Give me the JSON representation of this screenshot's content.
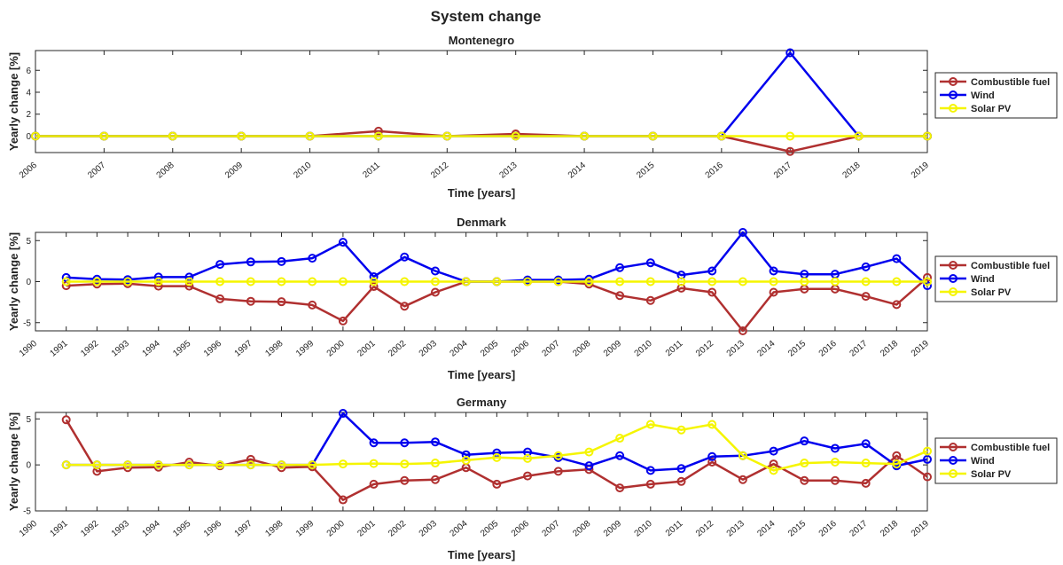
{
  "figure_title": "System change",
  "legend_labels": [
    "Combustible fuel",
    "Wind",
    "Solar PV"
  ],
  "colors": {
    "combustible": "#b03030",
    "wind": "#0000ee",
    "solar": "#f5f500"
  },
  "chart_data": [
    {
      "type": "line",
      "title": "Montenegro",
      "xlabel": "Time [years]",
      "ylabel": "Yearly change [%]",
      "xlim": [
        2006,
        2019
      ],
      "ylim": [
        -1.5,
        7.8
      ],
      "yticks": [
        0,
        2,
        4,
        6
      ],
      "xticks": [
        2006,
        2007,
        2008,
        2009,
        2010,
        2011,
        2012,
        2013,
        2014,
        2015,
        2016,
        2017,
        2018,
        2019
      ],
      "legend_position": "right",
      "x": [
        2006,
        2007,
        2008,
        2009,
        2010,
        2011,
        2012,
        2013,
        2014,
        2015,
        2016,
        2017,
        2018,
        2019
      ],
      "series": [
        {
          "name": "Combustible fuel",
          "color": "#b03030",
          "values": [
            0,
            0,
            0,
            0,
            0,
            0.45,
            0,
            0.2,
            0,
            0,
            0,
            -1.4,
            0,
            0
          ]
        },
        {
          "name": "Wind",
          "color": "#0000ee",
          "values": [
            0,
            0,
            0,
            0,
            0,
            0,
            0,
            0,
            0,
            0,
            0,
            7.6,
            0,
            0
          ]
        },
        {
          "name": "Solar PV",
          "color": "#f5f500",
          "values": [
            0,
            0,
            0,
            0,
            0,
            0,
            0,
            0,
            0,
            0,
            0,
            0,
            0,
            0
          ]
        }
      ]
    },
    {
      "type": "line",
      "title": "Denmark",
      "xlabel": "Time [years]",
      "ylabel": "Yearly change [%]",
      "xlim": [
        1990,
        2019
      ],
      "ylim": [
        -6,
        6
      ],
      "yticks": [
        -5,
        0,
        5
      ],
      "xticks": [
        1990,
        1991,
        1992,
        1993,
        1994,
        1995,
        1996,
        1997,
        1998,
        1999,
        2000,
        2001,
        2002,
        2003,
        2004,
        2005,
        2006,
        2007,
        2008,
        2009,
        2010,
        2011,
        2012,
        2013,
        2014,
        2015,
        2016,
        2017,
        2018,
        2019
      ],
      "legend_position": "right",
      "x": [
        1991,
        1992,
        1993,
        1994,
        1995,
        1996,
        1997,
        1998,
        1999,
        2000,
        2001,
        2002,
        2003,
        2004,
        2005,
        2006,
        2007,
        2008,
        2009,
        2010,
        2011,
        2012,
        2013,
        2014,
        2015,
        2016,
        2017,
        2018,
        2019
      ],
      "series": [
        {
          "name": "Combustible fuel",
          "color": "#b03030",
          "values": [
            -0.5,
            -0.3,
            -0.25,
            -0.55,
            -0.55,
            -2.1,
            -2.4,
            -2.45,
            -2.85,
            -4.8,
            -0.6,
            -3.0,
            -1.3,
            0,
            0,
            0,
            0,
            -0.3,
            -1.7,
            -2.3,
            -0.8,
            -1.3,
            -6.0,
            -1.3,
            -0.9,
            -0.9,
            -1.8,
            -2.8,
            0.5
          ]
        },
        {
          "name": "Wind",
          "color": "#0000ee",
          "values": [
            0.5,
            0.3,
            0.25,
            0.55,
            0.55,
            2.1,
            2.4,
            2.45,
            2.85,
            4.8,
            0.6,
            3.0,
            1.3,
            0,
            0,
            0.2,
            0.2,
            0.3,
            1.7,
            2.3,
            0.8,
            1.3,
            6.0,
            1.3,
            0.9,
            0.9,
            1.8,
            2.8,
            -0.5
          ]
        },
        {
          "name": "Solar PV",
          "color": "#f5f500",
          "values": [
            0,
            0,
            0,
            0,
            0,
            0,
            0,
            0,
            0,
            0,
            0,
            0,
            0,
            0,
            0,
            0,
            0,
            0,
            0,
            0,
            0,
            0,
            0,
            0,
            0,
            0,
            0,
            0,
            0
          ]
        }
      ]
    },
    {
      "type": "line",
      "title": "Germany",
      "xlabel": "Time [years]",
      "ylabel": "Yearly change [%]",
      "xlim": [
        1990,
        2019
      ],
      "ylim": [
        -5,
        5.7
      ],
      "yticks": [
        -5,
        0,
        5
      ],
      "xticks": [
        1990,
        1991,
        1992,
        1993,
        1994,
        1995,
        1996,
        1997,
        1998,
        1999,
        2000,
        2001,
        2002,
        2003,
        2004,
        2005,
        2006,
        2007,
        2008,
        2009,
        2010,
        2011,
        2012,
        2013,
        2014,
        2015,
        2016,
        2017,
        2018,
        2019
      ],
      "legend_position": "right",
      "x": [
        1991,
        1992,
        1993,
        1994,
        1995,
        1996,
        1997,
        1998,
        1999,
        2000,
        2001,
        2002,
        2003,
        2004,
        2005,
        2006,
        2007,
        2008,
        2009,
        2010,
        2011,
        2012,
        2013,
        2014,
        2015,
        2016,
        2017,
        2018,
        2019
      ],
      "series": [
        {
          "name": "Combustible fuel",
          "color": "#b03030",
          "values": [
            4.9,
            -0.7,
            -0.3,
            -0.25,
            0.3,
            -0.1,
            0.6,
            -0.3,
            -0.2,
            -3.8,
            -2.1,
            -1.7,
            -1.6,
            -0.3,
            -2.1,
            -1.2,
            -0.7,
            -0.5,
            -2.5,
            -2.1,
            -1.8,
            0.3,
            -1.6,
            0.1,
            -1.7,
            -1.7,
            -2.0,
            1.0,
            -1.3
          ]
        },
        {
          "name": "Wind",
          "color": "#0000ee",
          "values": [
            0,
            0,
            0,
            0,
            0,
            0,
            0,
            0,
            0,
            5.6,
            2.4,
            2.4,
            2.5,
            1.1,
            1.3,
            1.4,
            0.8,
            -0.1,
            1.0,
            -0.6,
            -0.4,
            0.9,
            1.0,
            1.5,
            2.6,
            1.8,
            2.3,
            -0.1,
            0.6
          ]
        },
        {
          "name": "Solar PV",
          "color": "#f5f500",
          "values": [
            0,
            0,
            0,
            0,
            0,
            0,
            0,
            0,
            0,
            0.1,
            0.15,
            0.1,
            0.2,
            0.5,
            0.8,
            0.7,
            1.0,
            1.4,
            2.9,
            4.4,
            3.8,
            4.4,
            1.0,
            -0.6,
            0.2,
            0.3,
            0.2,
            0.1,
            1.5
          ]
        }
      ]
    }
  ]
}
